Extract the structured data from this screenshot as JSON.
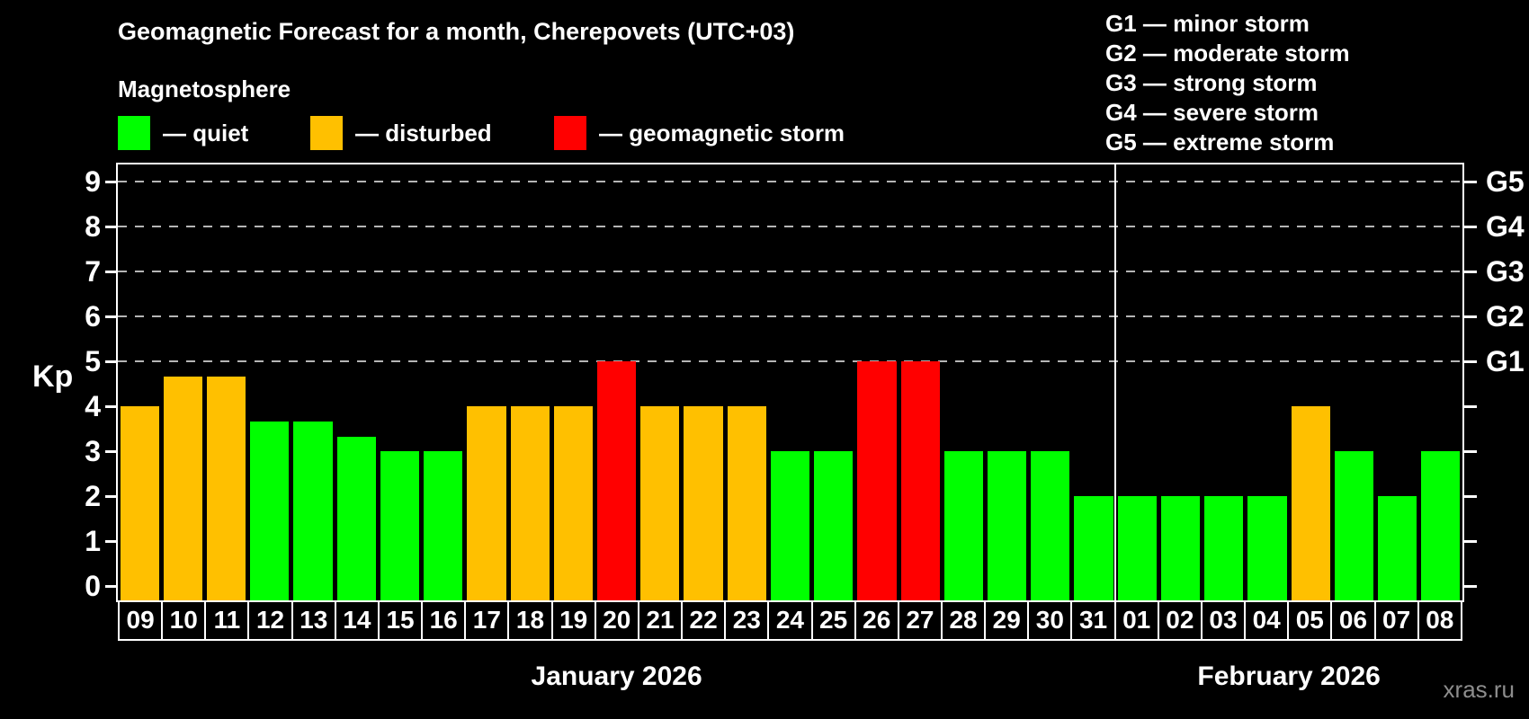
{
  "header": {
    "title": "Geomagnetic Forecast for a month, Cherepovets (UTC+03)",
    "subtitle": "Magnetosphere"
  },
  "legend": {
    "items": [
      {
        "key": "quiet",
        "label": "— quiet",
        "color": "#00ff00"
      },
      {
        "key": "disturbed",
        "label": "— disturbed",
        "color": "#ffc000"
      },
      {
        "key": "storm",
        "label": "— geomagnetic storm",
        "color": "#ff0000"
      }
    ]
  },
  "g_scale_legend": {
    "lines": [
      "G1 — minor storm",
      "G2 — moderate storm",
      "G3 — strong storm",
      "G4 — severe storm",
      "G5 — extreme storm"
    ]
  },
  "watermark": "xras.ru",
  "chart_data": {
    "type": "bar",
    "y_axis_label": "Kp",
    "ylim": [
      0,
      9
    ],
    "y_ticks": [
      0,
      1,
      2,
      3,
      4,
      5,
      6,
      7,
      8,
      9
    ],
    "gridlines_at": [
      5,
      6,
      7,
      8,
      9
    ],
    "grid_style": "dashed gray horizontal lines at Kp 5-9 only",
    "right_axis_labels": [
      {
        "kp": 5,
        "label": "G1"
      },
      {
        "kp": 6,
        "label": "G2"
      },
      {
        "kp": 7,
        "label": "G3"
      },
      {
        "kp": 8,
        "label": "G4"
      },
      {
        "kp": 9,
        "label": "G5"
      }
    ],
    "status_colors": {
      "quiet": "#00ff00",
      "disturbed": "#ffc000",
      "storm": "#ff0000"
    },
    "bars": [
      {
        "date": "09",
        "kp": 4,
        "status": "disturbed"
      },
      {
        "date": "10",
        "kp": 4.67,
        "status": "disturbed"
      },
      {
        "date": "11",
        "kp": 4.67,
        "status": "disturbed"
      },
      {
        "date": "12",
        "kp": 3.67,
        "status": "quiet"
      },
      {
        "date": "13",
        "kp": 3.67,
        "status": "quiet"
      },
      {
        "date": "14",
        "kp": 3.33,
        "status": "quiet"
      },
      {
        "date": "15",
        "kp": 3,
        "status": "quiet"
      },
      {
        "date": "16",
        "kp": 3,
        "status": "quiet"
      },
      {
        "date": "17",
        "kp": 4,
        "status": "disturbed"
      },
      {
        "date": "18",
        "kp": 4,
        "status": "disturbed"
      },
      {
        "date": "19",
        "kp": 4,
        "status": "disturbed"
      },
      {
        "date": "20",
        "kp": 5,
        "status": "storm"
      },
      {
        "date": "21",
        "kp": 4,
        "status": "disturbed"
      },
      {
        "date": "22",
        "kp": 4,
        "status": "disturbed"
      },
      {
        "date": "23",
        "kp": 4,
        "status": "disturbed"
      },
      {
        "date": "24",
        "kp": 3,
        "status": "quiet"
      },
      {
        "date": "25",
        "kp": 3,
        "status": "quiet"
      },
      {
        "date": "26",
        "kp": 5,
        "status": "storm"
      },
      {
        "date": "27",
        "kp": 5,
        "status": "storm"
      },
      {
        "date": "28",
        "kp": 3,
        "status": "quiet"
      },
      {
        "date": "29",
        "kp": 3,
        "status": "quiet"
      },
      {
        "date": "30",
        "kp": 3,
        "status": "quiet"
      },
      {
        "date": "31",
        "kp": 2,
        "status": "quiet"
      },
      {
        "date": "01",
        "kp": 2,
        "status": "quiet"
      },
      {
        "date": "02",
        "kp": 2,
        "status": "quiet"
      },
      {
        "date": "03",
        "kp": 2,
        "status": "quiet"
      },
      {
        "date": "04",
        "kp": 2,
        "status": "quiet"
      },
      {
        "date": "05",
        "kp": 4,
        "status": "disturbed"
      },
      {
        "date": "06",
        "kp": 3,
        "status": "quiet"
      },
      {
        "date": "07",
        "kp": 2,
        "status": "quiet"
      },
      {
        "date": "08",
        "kp": 3,
        "status": "quiet"
      }
    ],
    "months": [
      {
        "label": "January 2026",
        "start_index": 0,
        "count": 23
      },
      {
        "label": "February 2026",
        "start_index": 23,
        "count": 8
      }
    ],
    "legend_position": "top-left"
  }
}
